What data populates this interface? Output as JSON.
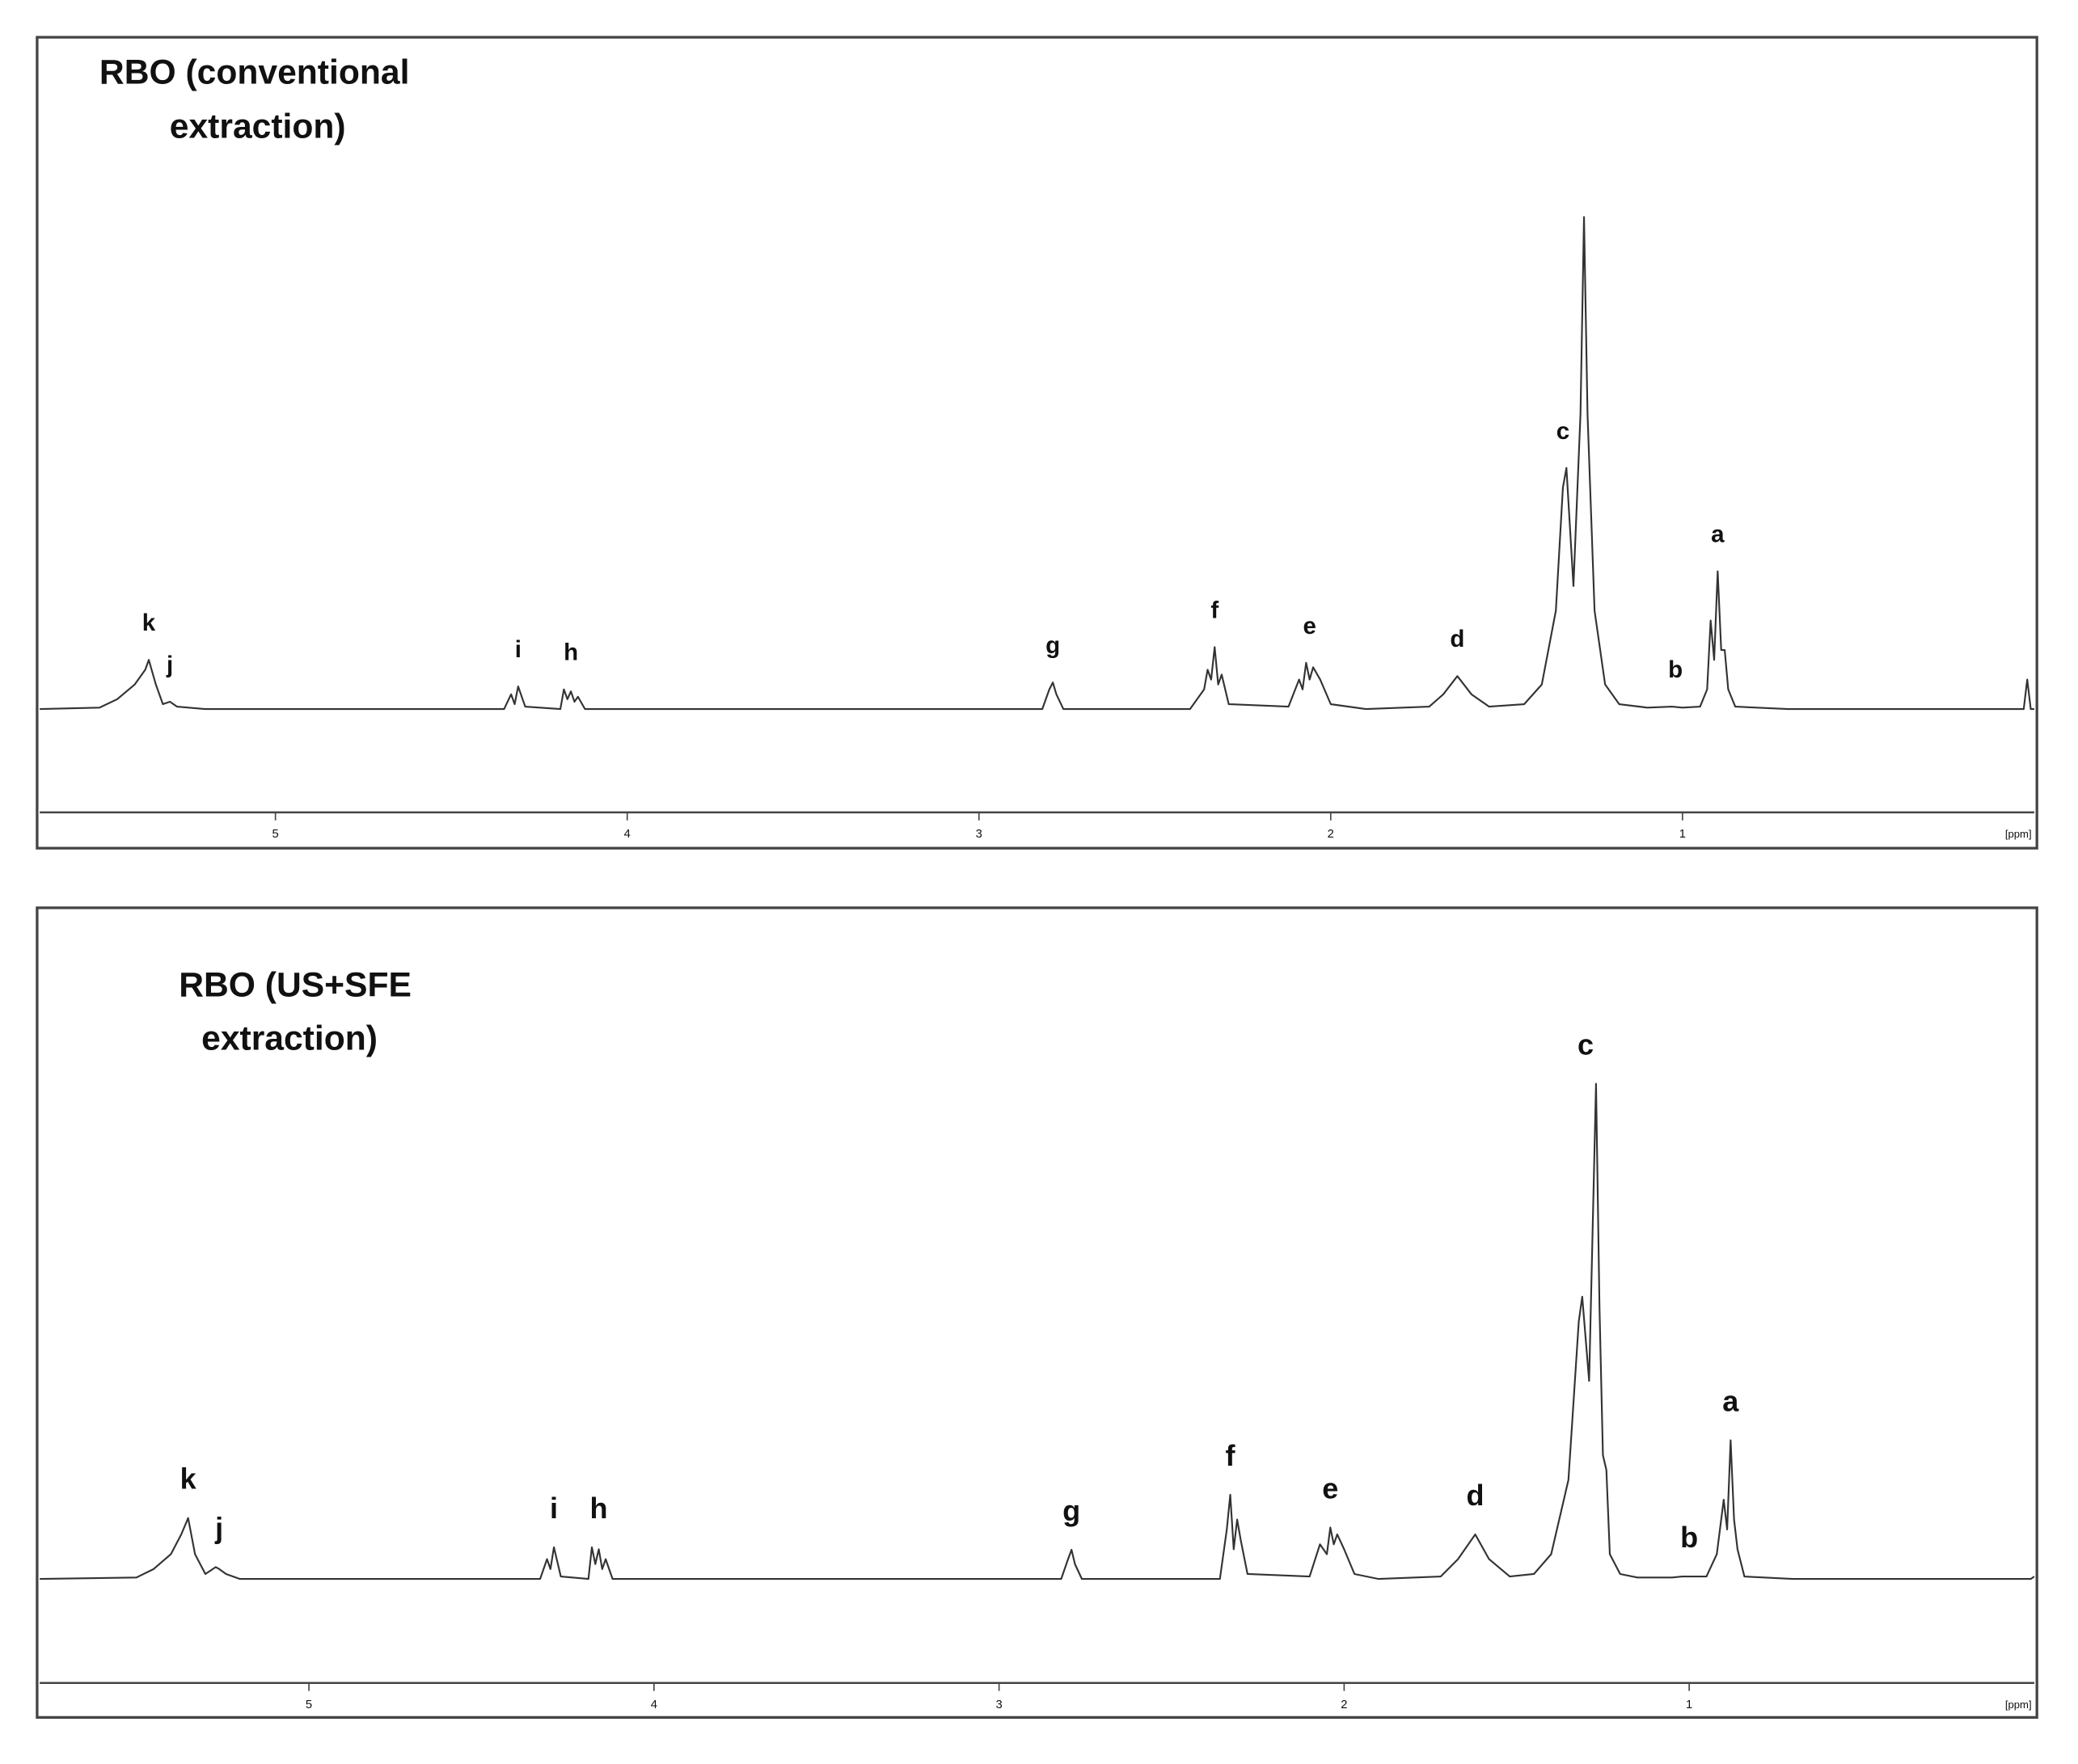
{
  "chart_data": [
    {
      "type": "line",
      "title": [
        "RBO (conventional",
        "extraction)"
      ],
      "xlabel": "[ppm]",
      "xlim": [
        5.67,
        0.0
      ],
      "ylim": [
        -21,
        136
      ],
      "xticks": [
        5,
        4,
        3,
        2,
        1
      ],
      "grid": false,
      "color": "#333333",
      "x": [
        5.67,
        5.5,
        5.45,
        5.4,
        5.37,
        5.36,
        5.34,
        5.32,
        5.3,
        5.28,
        5.2,
        4.35,
        4.33,
        4.32,
        4.31,
        4.29,
        4.19,
        4.18,
        4.17,
        4.16,
        4.15,
        4.14,
        4.12,
        2.82,
        2.8,
        2.79,
        2.78,
        2.76,
        2.4,
        2.36,
        2.35,
        2.34,
        2.33,
        2.32,
        2.31,
        2.29,
        2.12,
        2.09,
        2.08,
        2.07,
        2.06,
        2.05,
        2.03,
        2.0,
        1.9,
        1.72,
        1.68,
        1.64,
        1.6,
        1.55,
        1.45,
        1.4,
        1.36,
        1.34,
        1.33,
        1.31,
        1.29,
        1.28,
        1.27,
        1.25,
        1.22,
        1.18,
        1.1,
        1.03,
        1.0,
        0.95,
        0.93,
        0.92,
        0.91,
        0.9,
        0.89,
        0.88,
        0.87,
        0.85,
        0.7,
        0.03,
        0.02,
        0.01,
        0.0
      ],
      "values": [
        0,
        0.3,
        2,
        5,
        8,
        10,
        5,
        1,
        1.5,
        0.5,
        0,
        0,
        3,
        1,
        4.6,
        0.5,
        0,
        4,
        2,
        3.6,
        1.5,
        2.5,
        0,
        0,
        4,
        5.4,
        3,
        0,
        0,
        4,
        8,
        6,
        12.6,
        5,
        7,
        1,
        0.5,
        6,
        4,
        9.4,
        6,
        8.5,
        6,
        1,
        0,
        0.5,
        3,
        6.7,
        3,
        0.5,
        1,
        5,
        20,
        45,
        49,
        25,
        60,
        100,
        60,
        20,
        5,
        1,
        0.3,
        0.5,
        0.3,
        0.5,
        4,
        18,
        10,
        28,
        12,
        12,
        4,
        0.5,
        0,
        0,
        6,
        0,
        0
      ],
      "annotations": [
        {
          "text": "k",
          "x": 5.36
        },
        {
          "text": "j",
          "x": 5.3
        },
        {
          "text": "i",
          "x": 4.31
        },
        {
          "text": "h",
          "x": 4.16
        },
        {
          "text": "g",
          "x": 2.79
        },
        {
          "text": "f",
          "x": 2.33
        },
        {
          "text": "e",
          "x": 2.06
        },
        {
          "text": "d",
          "x": 1.64
        },
        {
          "text": "c",
          "x": 1.34
        },
        {
          "text": "b",
          "x": 1.02
        },
        {
          "text": "a",
          "x": 0.9
        }
      ]
    },
    {
      "type": "line",
      "title": [
        "RBO (US+SFE",
        "extraction)"
      ],
      "xlabel": "[ppm]",
      "xlim": [
        5.78,
        0.0
      ],
      "ylim": [
        -21,
        135
      ],
      "xticks": [
        5,
        4,
        3,
        2,
        1
      ],
      "grid": false,
      "color": "#333333",
      "x": [
        5.78,
        5.5,
        5.45,
        5.4,
        5.37,
        5.35,
        5.33,
        5.3,
        5.27,
        5.26,
        5.24,
        5.2,
        4.33,
        4.31,
        4.3,
        4.29,
        4.27,
        4.19,
        4.18,
        4.17,
        4.16,
        4.15,
        4.14,
        4.12,
        2.82,
        2.8,
        2.79,
        2.78,
        2.76,
        2.36,
        2.34,
        2.33,
        2.32,
        2.31,
        2.3,
        2.28,
        2.1,
        2.07,
        2.05,
        2.04,
        2.03,
        2.02,
        2.0,
        1.97,
        1.9,
        1.72,
        1.67,
        1.62,
        1.58,
        1.52,
        1.45,
        1.4,
        1.35,
        1.32,
        1.31,
        1.29,
        1.28,
        1.27,
        1.26,
        1.25,
        1.24,
        1.23,
        1.2,
        1.15,
        1.05,
        1.02,
        0.95,
        0.92,
        0.9,
        0.89,
        0.88,
        0.87,
        0.86,
        0.84,
        0.7,
        0.01,
        0.0
      ],
      "values": [
        0,
        0.3,
        2,
        5,
        9,
        12.3,
        5,
        1,
        2.4,
        2,
        1,
        0,
        0,
        4,
        2,
        6.4,
        0.5,
        0,
        6.4,
        3,
        6,
        2,
        4,
        0,
        0,
        4,
        5.9,
        3,
        0,
        0,
        10,
        17,
        6,
        12,
        8,
        1,
        0.5,
        7,
        5,
        10.4,
        7,
        9,
        6,
        1,
        0,
        0.5,
        4,
        9,
        4,
        0.5,
        1,
        5,
        20,
        52,
        57,
        40,
        70,
        100,
        55,
        25,
        22,
        5,
        1,
        0.3,
        0.3,
        0.5,
        0.5,
        5,
        16,
        10,
        28,
        12,
        6,
        0.5,
        0,
        0,
        0.5
      ],
      "annotations": [
        {
          "text": "k",
          "x": 5.35
        },
        {
          "text": "j",
          "x": 5.26
        },
        {
          "text": "i",
          "x": 4.29
        },
        {
          "text": "h",
          "x": 4.16
        },
        {
          "text": "g",
          "x": 2.79
        },
        {
          "text": "f",
          "x": 2.33
        },
        {
          "text": "e",
          "x": 2.04
        },
        {
          "text": "d",
          "x": 1.62
        },
        {
          "text": "c",
          "x": 1.3
        },
        {
          "text": "b",
          "x": 1.0
        },
        {
          "text": "a",
          "x": 0.88
        }
      ]
    }
  ]
}
